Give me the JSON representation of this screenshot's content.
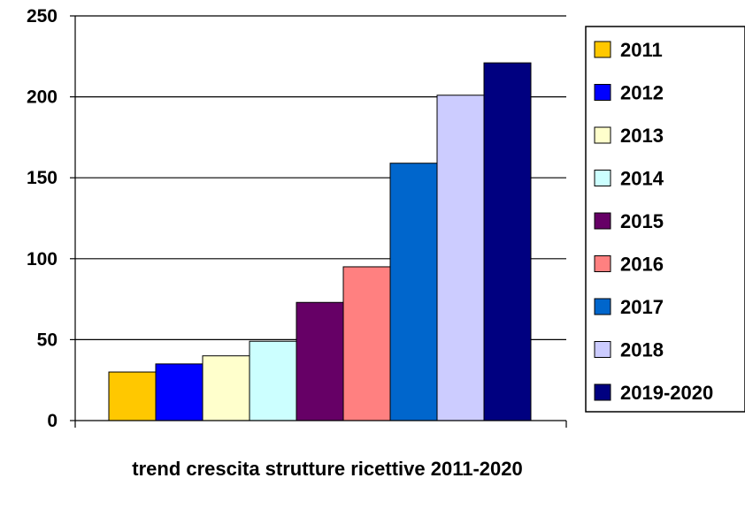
{
  "chart_data": {
    "type": "bar",
    "xlabel": "trend crescita strutture ricettive 2011-2020",
    "ylabel": "",
    "ylim": [
      0,
      250
    ],
    "yticks": [
      0,
      50,
      100,
      150,
      200,
      250
    ],
    "grid": true,
    "legend_position": "right",
    "series": [
      {
        "name": "2011",
        "value": 30,
        "color": "#FFC800"
      },
      {
        "name": "2012",
        "value": 35,
        "color": "#0000FF"
      },
      {
        "name": "2013",
        "value": 40,
        "color": "#FFFFCC"
      },
      {
        "name": "2014",
        "value": 49,
        "color": "#CCFFFF"
      },
      {
        "name": "2015",
        "value": 73,
        "color": "#660066"
      },
      {
        "name": "2016",
        "value": 95,
        "color": "#FF8080"
      },
      {
        "name": "2017",
        "value": 159,
        "color": "#0066CC"
      },
      {
        "name": "2018",
        "value": 201,
        "color": "#CCCCFF"
      },
      {
        "name": "2019-2020",
        "value": 221,
        "color": "#000080"
      }
    ]
  }
}
